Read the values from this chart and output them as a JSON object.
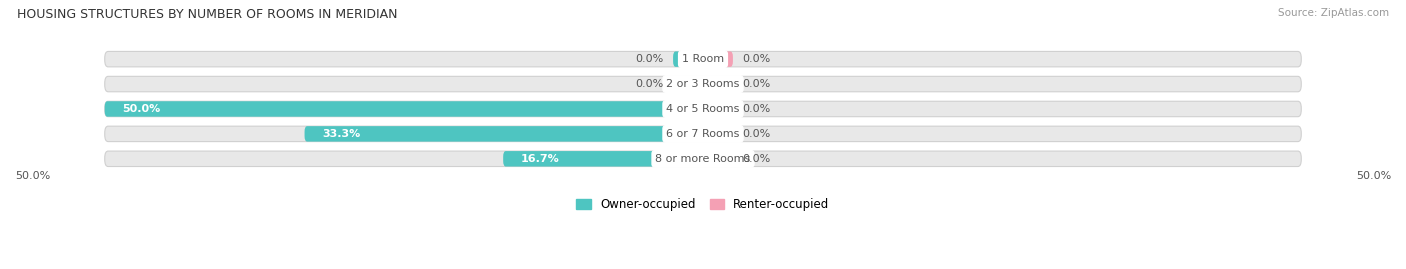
{
  "title": "HOUSING STRUCTURES BY NUMBER OF ROOMS IN MERIDIAN",
  "source": "Source: ZipAtlas.com",
  "categories": [
    "1 Room",
    "2 or 3 Rooms",
    "4 or 5 Rooms",
    "6 or 7 Rooms",
    "8 or more Rooms"
  ],
  "owner_values": [
    0.0,
    0.0,
    50.0,
    33.3,
    16.7
  ],
  "renter_values": [
    0.0,
    0.0,
    0.0,
    0.0,
    0.0
  ],
  "owner_color": "#4EC5C1",
  "renter_color": "#F4A0B4",
  "bar_bg_color": "#E8E8E8",
  "bar_outline_color": "#D0D0D0",
  "axis_max": 50.0,
  "label_color": "#555555",
  "title_color": "#333333",
  "source_color": "#999999",
  "legend_owner": "Owner-occupied",
  "legend_renter": "Renter-occupied",
  "bg_color": "#FFFFFF",
  "bar_height": 0.62,
  "stub_size": 2.5,
  "axis_label_left": "50.0%",
  "axis_label_right": "50.0%"
}
